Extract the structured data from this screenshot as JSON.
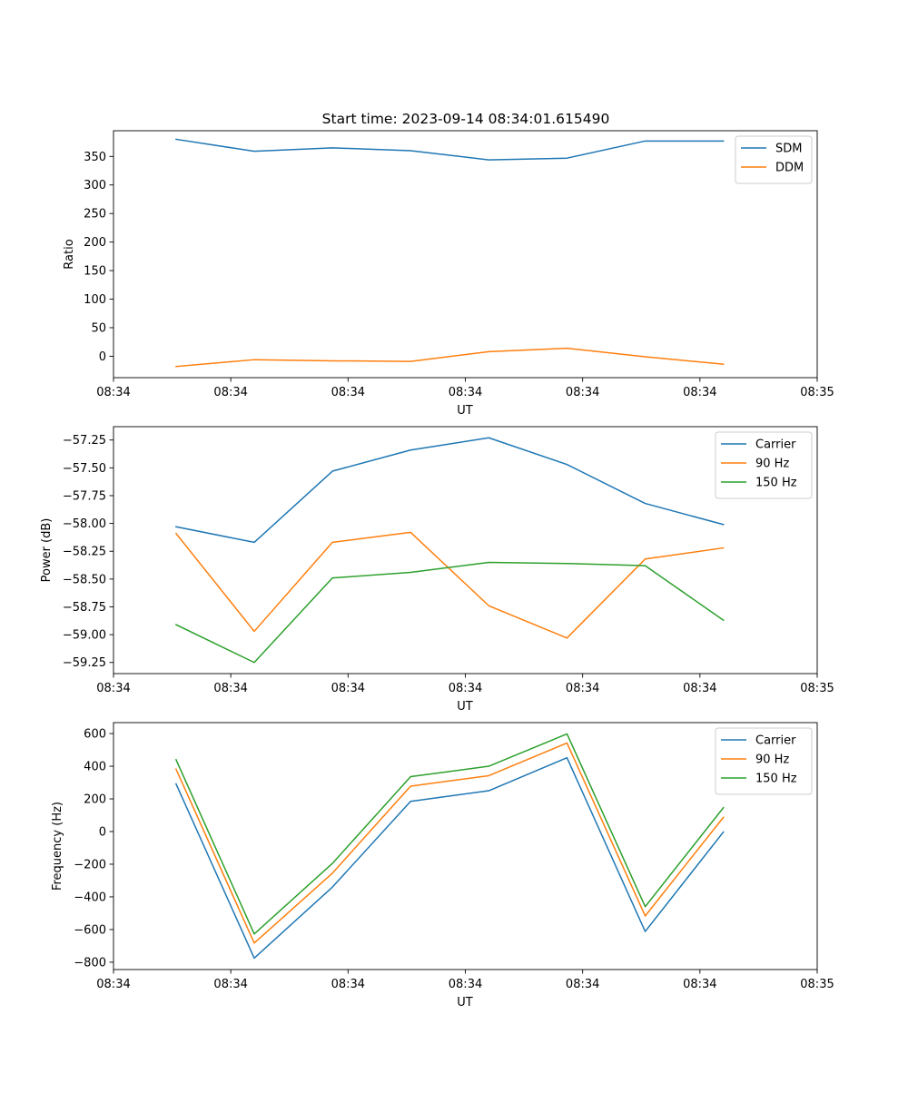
{
  "figure": {
    "title": "Start time: 2023-09-14 08:34:01.615490"
  },
  "colors": {
    "blue": "#1f77b4",
    "orange": "#ff7f0e",
    "green": "#2ca02c",
    "axis": "#000000"
  },
  "chart_data": [
    {
      "type": "line",
      "title": "Start time: 2023-09-14 08:34:01.615490",
      "xlabel": "UT",
      "ylabel": "Ratio",
      "x": [
        1,
        2,
        3,
        4,
        5,
        6,
        7,
        8
      ],
      "xlim": [
        0.2,
        9.2
      ],
      "xticks": [
        0.2,
        1.7,
        3.2,
        4.7,
        6.2,
        7.7,
        9.2
      ],
      "xtick_labels": [
        "08:34",
        "08:34",
        "08:34",
        "08:34",
        "08:34",
        "08:34",
        "08:35"
      ],
      "ylim": [
        -37.5,
        395
      ],
      "yticks": [
        0,
        50,
        100,
        150,
        200,
        250,
        300,
        350
      ],
      "ytick_labels": [
        "0",
        "50",
        "100",
        "150",
        "200",
        "250",
        "300",
        "350"
      ],
      "legend_position": "top-right",
      "series": [
        {
          "name": "SDM",
          "color": "#1f77b4",
          "values": [
            380,
            359,
            365,
            360,
            344,
            347,
            377,
            377
          ]
        },
        {
          "name": "DDM",
          "color": "#ff7f0e",
          "values": [
            -18,
            -6,
            -8,
            -9,
            8,
            14,
            -1,
            -14
          ]
        }
      ]
    },
    {
      "type": "line",
      "title": "",
      "xlabel": "UT",
      "ylabel": "Power (dB)",
      "x": [
        1,
        2,
        3,
        4,
        5,
        6,
        7,
        8
      ],
      "xlim": [
        0.2,
        9.2
      ],
      "xticks": [
        0.2,
        1.7,
        3.2,
        4.7,
        6.2,
        7.7,
        9.2
      ],
      "xtick_labels": [
        "08:34",
        "08:34",
        "08:34",
        "08:34",
        "08:34",
        "08:34",
        "08:35"
      ],
      "ylim": [
        -59.35,
        -57.13
      ],
      "yticks": [
        -59.25,
        -59.0,
        -58.75,
        -58.5,
        -58.25,
        -58.0,
        -57.75,
        -57.5,
        -57.25
      ],
      "ytick_labels": [
        "−59.25",
        "−59.00",
        "−58.75",
        "−58.50",
        "−58.25",
        "−58.00",
        "−57.75",
        "−57.50",
        "−57.25"
      ],
      "legend_position": "top-right",
      "series": [
        {
          "name": "Carrier",
          "color": "#1f77b4",
          "values": [
            -58.03,
            -58.17,
            -57.53,
            -57.34,
            -57.23,
            -57.47,
            -57.82,
            -58.01
          ]
        },
        {
          "name": "90 Hz",
          "color": "#ff7f0e",
          "values": [
            -58.09,
            -58.97,
            -58.17,
            -58.08,
            -58.74,
            -59.03,
            -58.32,
            -58.22
          ]
        },
        {
          "name": "150 Hz",
          "color": "#2ca02c",
          "values": [
            -58.91,
            -59.25,
            -58.49,
            -58.44,
            -58.35,
            -58.36,
            -58.38,
            -58.87
          ]
        }
      ]
    },
    {
      "type": "line",
      "title": "",
      "xlabel": "UT",
      "ylabel": "Frequency (Hz)",
      "x": [
        1,
        2,
        3,
        4,
        5,
        6,
        7,
        8
      ],
      "xlim": [
        0.2,
        9.2
      ],
      "xticks": [
        0.2,
        1.7,
        3.2,
        4.7,
        6.2,
        7.7,
        9.2
      ],
      "xtick_labels": [
        "08:34",
        "08:34",
        "08:34",
        "08:34",
        "08:34",
        "08:34",
        "08:35"
      ],
      "ylim": [
        -845,
        667
      ],
      "yticks": [
        -800,
        -600,
        -400,
        -200,
        0,
        200,
        400,
        600
      ],
      "ytick_labels": [
        "−800",
        "−600",
        "−400",
        "−200",
        "0",
        "200",
        "400",
        "600"
      ],
      "legend_position": "top-right",
      "series": [
        {
          "name": "Carrier",
          "color": "#1f77b4",
          "values": [
            292,
            -775,
            -340,
            185,
            250,
            452,
            -612,
            -3
          ]
        },
        {
          "name": "90 Hz",
          "color": "#ff7f0e",
          "values": [
            382,
            -683,
            -255,
            278,
            342,
            542,
            -517,
            87
          ]
        },
        {
          "name": "150 Hz",
          "color": "#2ca02c",
          "values": [
            440,
            -627,
            -195,
            336,
            400,
            598,
            -460,
            146
          ]
        }
      ]
    }
  ]
}
